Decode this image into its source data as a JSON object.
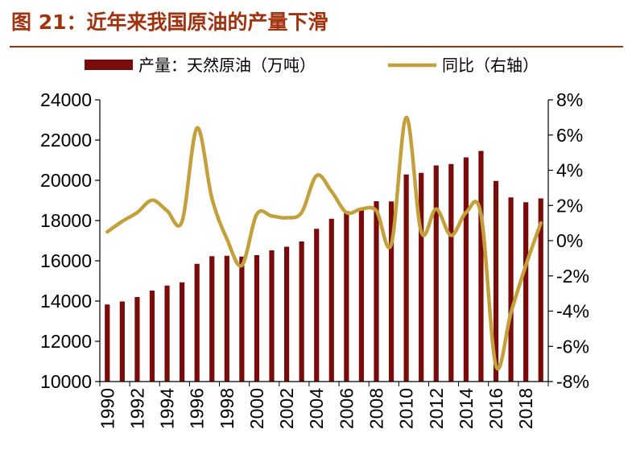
{
  "title": "图 21：近年来我国原油的产量下滑",
  "chart_data": {
    "type": "bar+line",
    "categories": [
      1990,
      1991,
      1992,
      1993,
      1994,
      1995,
      1996,
      1997,
      1998,
      1999,
      2000,
      2001,
      2002,
      2003,
      2004,
      2005,
      2006,
      2007,
      2008,
      2009,
      2010,
      2011,
      2012,
      2013,
      2014,
      2015,
      2016,
      2017,
      2018,
      2019
    ],
    "series": [
      {
        "name": "产量：天然原油（万吨）",
        "type": "bar",
        "axis": "left",
        "color": "#7a0b0b",
        "values": [
          13830,
          13980,
          14200,
          14520,
          14770,
          14930,
          15850,
          16230,
          16250,
          16210,
          16280,
          16520,
          16700,
          16960,
          17590,
          18090,
          18480,
          18640,
          18960,
          18950,
          20290,
          20370,
          20740,
          20810,
          21140,
          21460,
          19970,
          19150,
          18910,
          19100
        ]
      },
      {
        "name": "同比（右轴）",
        "type": "line",
        "axis": "right",
        "color": "#c4a03c",
        "values": [
          0.5,
          1.1,
          1.6,
          2.3,
          1.7,
          1.1,
          6.4,
          2.4,
          0.1,
          -1.4,
          1.5,
          1.4,
          1.3,
          1.6,
          3.7,
          2.8,
          1.6,
          1.8,
          1.7,
          -0.2,
          7.0,
          0.5,
          1.8,
          0.3,
          1.6,
          1.5,
          -7.1,
          -4.1,
          -1.4,
          1.0
        ]
      }
    ],
    "y_left": {
      "min": 10000,
      "max": 24000,
      "step": 2000,
      "ticks": [
        "10000",
        "12000",
        "14000",
        "16000",
        "18000",
        "20000",
        "22000",
        "24000"
      ]
    },
    "y_right": {
      "min": -8,
      "max": 8,
      "step": 2,
      "ticks": [
        "-8%",
        "-6%",
        "-4%",
        "-2%",
        "0%",
        "2%",
        "4%",
        "6%",
        "8%"
      ]
    },
    "x_tick_labels": [
      "1990",
      "1992",
      "1994",
      "1996",
      "1998",
      "2000",
      "2002",
      "2004",
      "2006",
      "2008",
      "2010",
      "2012",
      "2014",
      "2016",
      "2018"
    ],
    "legend": {
      "position": "top",
      "entries": [
        "产量：天然原油（万吨）",
        "同比（右轴）"
      ]
    },
    "grid": false
  }
}
